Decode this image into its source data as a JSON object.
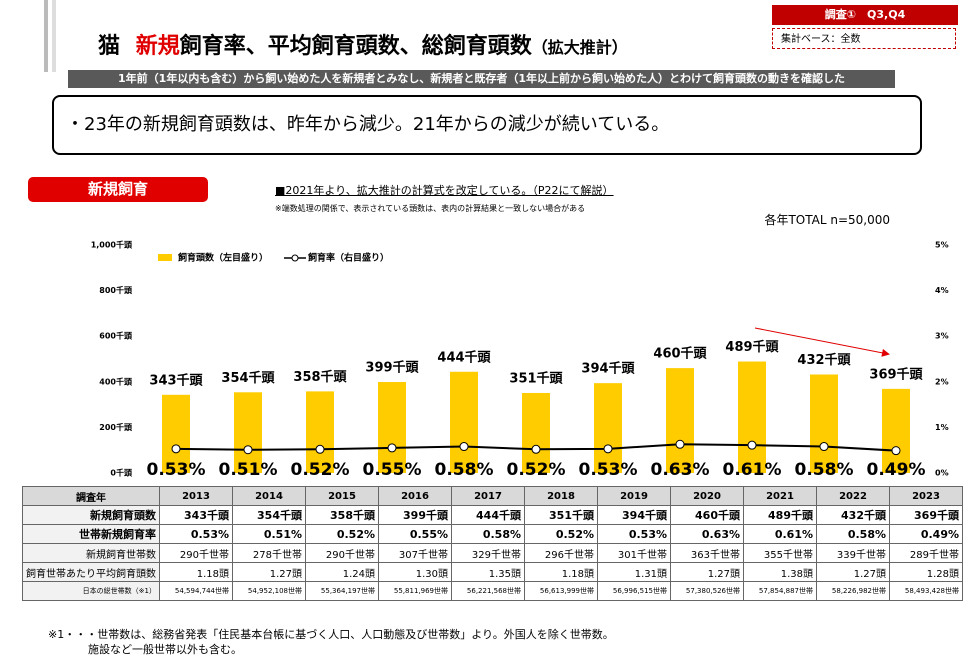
{
  "header": {
    "title_prefix": "猫",
    "title_highlight": "新規",
    "title_main": "飼育率、平均飼育頭数、総飼育頭数",
    "title_suffix": "（拡大推計）",
    "survey": "調査①　Q3,Q4",
    "base": "集計ベース：全数",
    "subtitle": "1年前（1年以内も含む）から飼い始めた人を新規者とみなし、新規者と既存者（1年以上前から飼い始めた人）とわけて飼育頭数の動きを確認した"
  },
  "summary": "・23年の新規飼育頭数は、昨年から減少。21年からの減少が続いている。",
  "section_label": "新規飼育",
  "note_main": "■2021年より、拡大推計の計算式を改定している。（P22にて解説）",
  "note_sub": "※端数処理の関係で、表示されている頭数は、表内の計算結果と一致しない場合がある",
  "total_note": "各年TOTAL n=50,000",
  "chart_data": {
    "type": "bar",
    "legend": "upper left",
    "grid": false,
    "ylim": [
      0,
      1000
    ],
    "yticks": [
      {
        "value": 0,
        "label": "0千頭"
      },
      {
        "value": 200,
        "label": "200千頭"
      },
      {
        "value": 400,
        "label": "400千頭"
      },
      {
        "value": 600,
        "label": "600千頭"
      },
      {
        "value": 800,
        "label": "800千頭"
      },
      {
        "value": 1000,
        "label": "1,000千頭"
      }
    ],
    "y2lim": [
      0,
      5
    ],
    "y2ticks": [
      {
        "value": 0,
        "label": "0%"
      },
      {
        "value": 1,
        "label": "1%"
      },
      {
        "value": 2,
        "label": "2%"
      },
      {
        "value": 3,
        "label": "3%"
      },
      {
        "value": 4,
        "label": "4%"
      },
      {
        "value": 5,
        "label": "5%"
      }
    ],
    "series": [
      {
        "name": "飼育頭数（左目盛り）",
        "type": "bar",
        "color": "#ffcc00",
        "values": [
          343,
          354,
          358,
          399,
          444,
          351,
          394,
          460,
          489,
          432,
          369
        ],
        "value_labels": [
          "343千頭",
          "354千頭",
          "358千頭",
          "399千頭",
          "444千頭",
          "351千頭",
          "394千頭",
          "460千頭",
          "489千頭",
          "432千頭",
          "369千頭"
        ]
      },
      {
        "name": "飼育率（右目盛り）",
        "type": "line",
        "axis": "y2",
        "color": "#000000",
        "values": [
          0.53,
          0.51,
          0.52,
          0.55,
          0.58,
          0.52,
          0.53,
          0.63,
          0.61,
          0.58,
          0.49
        ],
        "value_labels": [
          "0.53%",
          "0.51%",
          "0.52%",
          "0.55%",
          "0.58%",
          "0.52%",
          "0.53%",
          "0.63%",
          "0.61%",
          "0.58%",
          "0.49%"
        ]
      }
    ]
  },
  "table": {
    "header": [
      "調査年",
      2013,
      2014,
      2015,
      2016,
      2017,
      2018,
      2019,
      2020,
      2021,
      2022,
      2023
    ],
    "rows": [
      [
        "新規飼育頭数",
        "343千頭",
        "354千頭",
        "358千頭",
        "399千頭",
        "444千頭",
        "351千頭",
        "394千頭",
        "460千頭",
        "489千頭",
        "432千頭",
        "369千頭"
      ],
      [
        "世帯新規飼育率",
        "0.53%",
        "0.51%",
        "0.52%",
        "0.55%",
        "0.58%",
        "0.52%",
        "0.53%",
        "0.63%",
        "0.61%",
        "0.58%",
        "0.49%"
      ],
      [
        "新規飼育世帯数",
        "290千世帯",
        "278千世帯",
        "290千世帯",
        "307千世帯",
        "329千世帯",
        "296千世帯",
        "301千世帯",
        "363千世帯",
        "355千世帯",
        "339千世帯",
        "289千世帯"
      ],
      [
        "飼育世帯あたり平均飼育頭数",
        "1.18頭",
        "1.27頭",
        "1.24頭",
        "1.30頭",
        "1.35頭",
        "1.18頭",
        "1.31頭",
        "1.27頭",
        "1.38頭",
        "1.27頭",
        "1.28頭"
      ],
      [
        "日本の総世帯数（※1）",
        "54,594,744世帯",
        "54,952,108世帯",
        "55,364,197世帯",
        "55,811,969世帯",
        "56,221,568世帯",
        "56,613,999世帯",
        "56,996,515世帯",
        "57,380,526世帯",
        "57,854,887世帯",
        "58,226,982世帯",
        "58,493,428世帯"
      ]
    ]
  },
  "footnote": [
    "※1・・・世帯数は、総務省発表「住民基本台帳に基づく人口、人口動態及び世帯数」より。外国人を除く世帯数。",
    "施設など一般世帯以外も含む。"
  ]
}
